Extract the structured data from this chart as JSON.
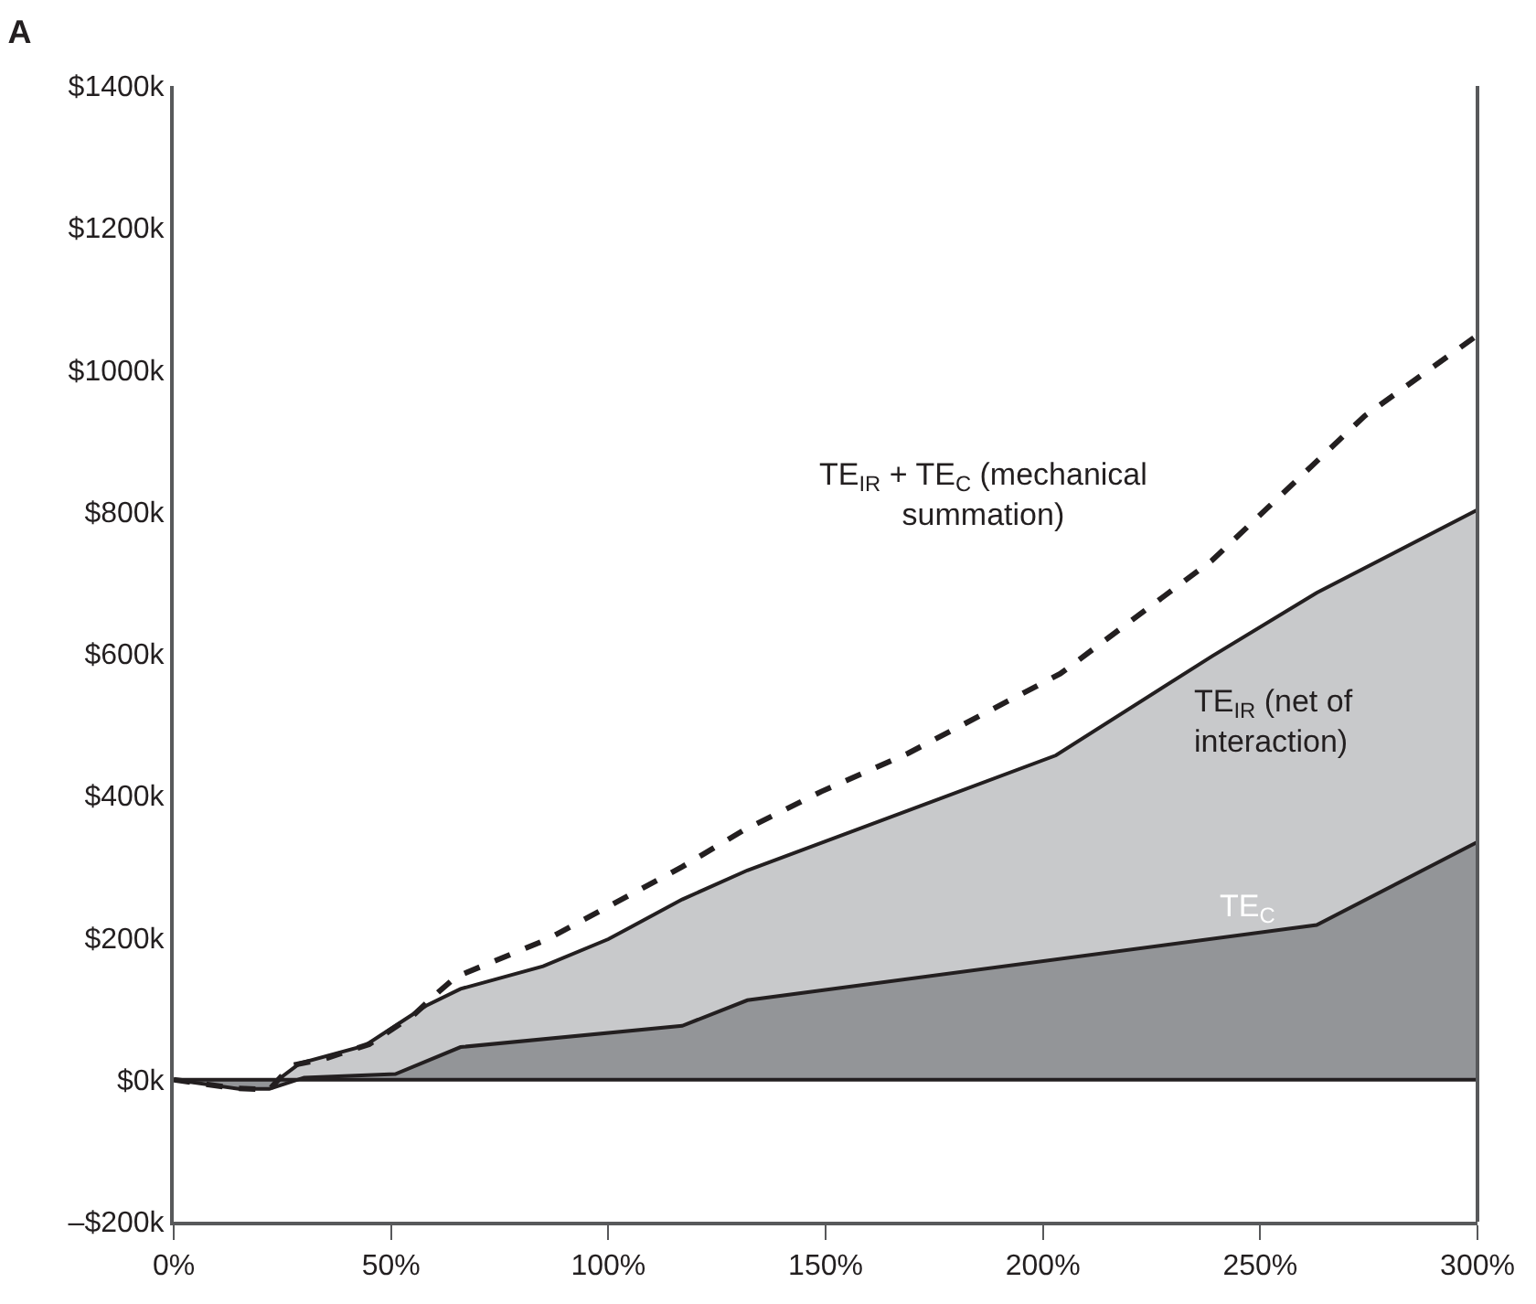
{
  "chart_data": {
    "type": "area",
    "title": "A",
    "xlim": [
      0,
      300
    ],
    "xticks": [
      {
        "value": 0,
        "label": "0%"
      },
      {
        "value": 50,
        "label": "50%"
      },
      {
        "value": 100,
        "label": "100%"
      },
      {
        "value": 150,
        "label": "150%"
      },
      {
        "value": 200,
        "label": "200%"
      },
      {
        "value": 250,
        "label": "250%"
      },
      {
        "value": 300,
        "label": "300%"
      }
    ],
    "ylim": [
      -200,
      1400
    ],
    "yticks": [
      {
        "value": -200,
        "label": "–$200k"
      },
      {
        "value": 0,
        "label": "$0k"
      },
      {
        "value": 200,
        "label": "$200k"
      },
      {
        "value": 400,
        "label": "$400k"
      },
      {
        "value": 600,
        "label": "$600k"
      },
      {
        "value": 800,
        "label": "$800k"
      },
      {
        "value": 1000,
        "label": "$1000k"
      },
      {
        "value": 1200,
        "label": "$1200k"
      },
      {
        "value": 1400,
        "label": "$1400k"
      }
    ],
    "grid": false,
    "legend": false,
    "marker": "none",
    "ref_lines": [
      {
        "axis": "y",
        "value": 0,
        "color": "#231f20"
      }
    ],
    "series": [
      {
        "name": "TE$_{IR}$ (net of\ninteraction)",
        "color": "#c8c9cb",
        "x": [
          0,
          15,
          22,
          24,
          29,
          44,
          53,
          58,
          66,
          85,
          100,
          117,
          132,
          203,
          239,
          263,
          300
        ],
        "values": [
          0,
          -10,
          -12,
          0,
          23,
          48,
          84,
          104,
          128,
          160,
          198,
          254,
          295,
          457,
          597,
          686,
          803
        ]
      },
      {
        "name": "TE$_{C}$",
        "color": "#939598",
        "x": [
          0,
          15,
          22,
          30,
          51,
          66,
          117,
          132,
          263,
          300
        ],
        "values": [
          0,
          -13,
          -13,
          3,
          8,
          46,
          76,
          112,
          218,
          335
        ]
      },
      {
        "name": "TE$_{IR}$ + TE$_{C}$ (mechanical\nsummation)",
        "type": "line",
        "line_style": "dashed",
        "color": "#231f20",
        "x": [
          0,
          14,
          22,
          27,
          35,
          45,
          55,
          61,
          65,
          86,
          117,
          131,
          149,
          169,
          204,
          239,
          274,
          300
        ],
        "values": [
          0,
          -12,
          -14,
          20,
          30,
          50,
          90,
          124,
          145,
          198,
          300,
          351,
          406,
          460,
          572,
          732,
          935,
          1049
        ]
      }
    ]
  }
}
